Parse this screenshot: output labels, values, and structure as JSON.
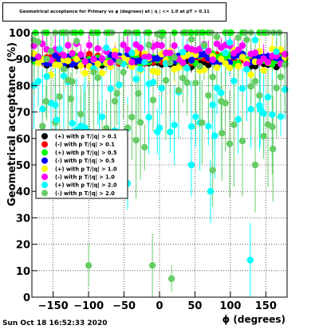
{
  "chart_data": {
    "type": "scatter",
    "title": "Geometrical acceptance for Primary vs φ (degrees) at | η | <= 1.0 at pT > 0.11",
    "xlabel": "ϕ (degrees)",
    "ylabel": "Geometrical acceptance (%)",
    "xlim": [
      -180,
      180
    ],
    "ylim": [
      0,
      100
    ],
    "x_ticks": [
      -150,
      -100,
      -50,
      0,
      50,
      100,
      150
    ],
    "y_ticks": [
      0,
      10,
      20,
      30,
      40,
      50,
      60,
      70,
      80,
      90,
      100
    ],
    "grid": true,
    "legend_position": "left-middle",
    "series": [
      {
        "name": "(+) with p T/|q| > 0.1",
        "color": "#000000",
        "marker": "circle",
        "center": 89,
        "spread": 2,
        "err": 2
      },
      {
        "name": "(-) with p T/|q| > 0.1",
        "color": "#ff0000",
        "marker": "circle",
        "center": 90,
        "spread": 2,
        "err": 2
      },
      {
        "name": "(+) with p T/|q| > 0.5",
        "color": "#00ff00",
        "marker": "circle",
        "center": 90,
        "spread": 2,
        "err": 2
      },
      {
        "name": "(-) with p T/|q| > 0.5",
        "color": "#0000ff",
        "marker": "circle",
        "center": 90,
        "spread": 2,
        "err": 2
      },
      {
        "name": "(+) with p T/|q| > 1.0",
        "color": "#ffff00",
        "marker": "circle",
        "center": 89,
        "spread": 5,
        "err": 4
      },
      {
        "name": "(-) with p T/|q| > 1.0",
        "color": "#ff00ff",
        "marker": "circle",
        "center": 92,
        "spread": 4,
        "err": 4
      },
      {
        "name": "(+) with p T/|q| > 2.0",
        "color": "#00ffff",
        "marker": "circle",
        "center": 80,
        "spread": 18,
        "err": 14
      },
      {
        "name": "(-) with p T/|q| > 2.0",
        "color": "#66cc66",
        "marker": "circle",
        "center": 78,
        "spread": 22,
        "err": 16
      }
    ],
    "outliers": {
      "x": [
        -160,
        -145,
        -125,
        -107,
        -100,
        -85,
        -60,
        -45,
        -30,
        -15,
        -10,
        0,
        17,
        45,
        60,
        72,
        75,
        78,
        88,
        128,
        135,
        142,
        160
      ],
      "y": [
        74,
        67,
        75,
        63,
        12,
        62,
        77,
        43,
        77,
        68,
        12,
        64,
        7,
        50,
        66,
        40,
        48,
        61,
        62,
        14,
        50,
        71,
        56
      ],
      "err": [
        6,
        10,
        10,
        18,
        8,
        12,
        12,
        10,
        10,
        14,
        12,
        12,
        5,
        12,
        16,
        12,
        14,
        16,
        18,
        14,
        18,
        14,
        20
      ]
    }
  },
  "footer": {
    "date": "Sun Oct 18 16:52:33 2020"
  }
}
